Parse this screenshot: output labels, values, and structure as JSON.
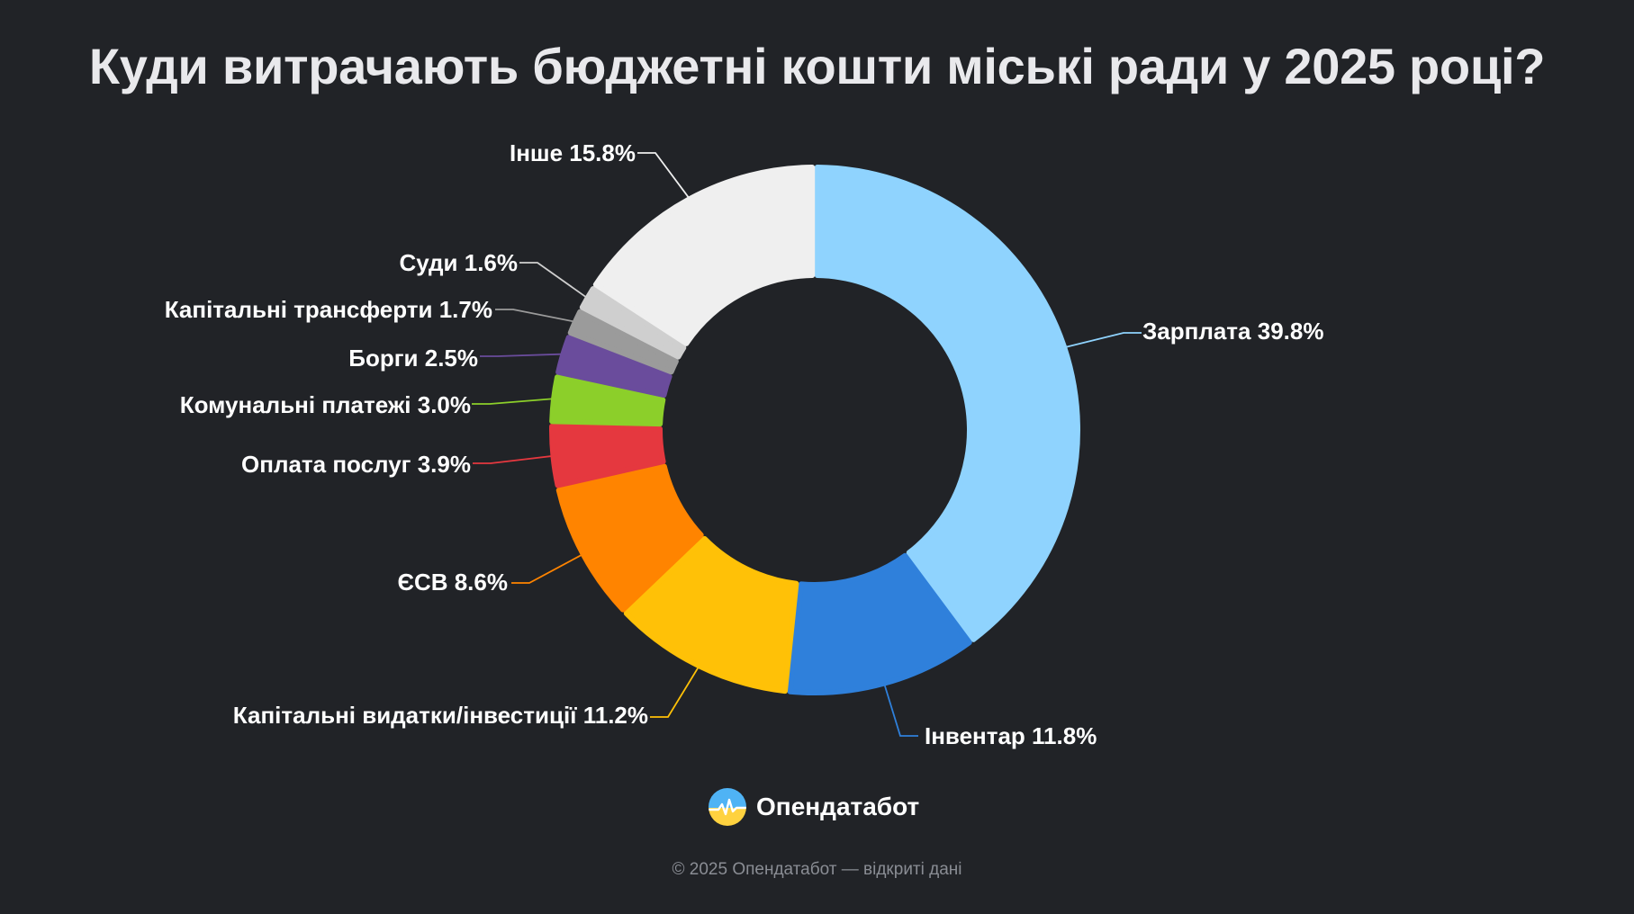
{
  "title": "Куди витрачають бюджетні кошти міські ради у 2025 році?",
  "chart_data": {
    "type": "pie",
    "variant": "donut",
    "title": "Куди витрачають бюджетні кошти міські ради у 2025 році?",
    "unit": "%",
    "slices": [
      {
        "label": "Зарплата",
        "value": 39.8,
        "display": "Зарплата 39.8%",
        "color": "#8fd3fe"
      },
      {
        "label": "Інвентар",
        "value": 11.8,
        "display": "Інвентар 11.8%",
        "color": "#2f80db"
      },
      {
        "label": "Капітальні видатки/інвестиції",
        "value": 11.2,
        "display": "Капітальні видатки/інвестиції 11.2%",
        "color": "#ffc107"
      },
      {
        "label": "ЄСВ",
        "value": 8.6,
        "display": "ЄСВ 8.6%",
        "color": "#ff8400"
      },
      {
        "label": "Оплата послуг",
        "value": 3.9,
        "display": "Оплата послуг 3.9%",
        "color": "#e5383f"
      },
      {
        "label": "Комунальні платежі",
        "value": 3.0,
        "display": "Комунальні платежі 3.0%",
        "color": "#8ccf2a"
      },
      {
        "label": "Борги",
        "value": 2.5,
        "display": "Борги 2.5%",
        "color": "#6a4c9c"
      },
      {
        "label": "Капітальні трансферти",
        "value": 1.7,
        "display": "Капітальні трансферти 1.7%",
        "color": "#9b9b9b"
      },
      {
        "label": "Суди",
        "value": 1.6,
        "display": "Суди 1.6%",
        "color": "#cfcfcf"
      },
      {
        "label": "Інше",
        "value": 15.8,
        "display": "Інше 15.8%",
        "color": "#efefef"
      }
    ]
  },
  "brand": {
    "name": "Опендатабот",
    "logo_icon": "opendatabot-logo-icon"
  },
  "footer": "© 2025 Опендатабот — відкриті дані"
}
